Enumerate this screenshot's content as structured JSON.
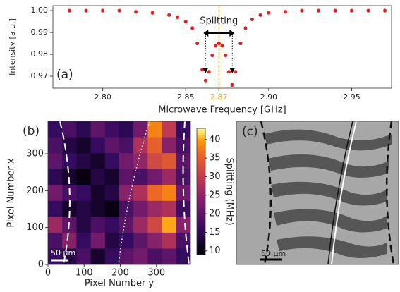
{
  "chart_data": [
    {
      "type": "scatter",
      "panel_label": "(a)",
      "annotation": "Splitting",
      "xlabel": "Microwave Frequency [GHz]",
      "ylabel": "Intensity [a.u.]",
      "color": "#e02424",
      "marker_line": {
        "x": 2.87,
        "color": "#f0a020"
      },
      "x": [
        2.78,
        2.79,
        2.8,
        2.81,
        2.82,
        2.83,
        2.84,
        2.845,
        2.85,
        2.854,
        2.857,
        2.86,
        2.862,
        2.864,
        2.866,
        2.868,
        2.87,
        2.872,
        2.874,
        2.876,
        2.878,
        2.88,
        2.883,
        2.886,
        2.89,
        2.895,
        2.9,
        2.91,
        2.92,
        2.93,
        2.94,
        2.95,
        2.96,
        2.97
      ],
      "values": [
        1.0,
        1.0,
        1.0,
        1.0,
        0.9995,
        0.999,
        0.998,
        0.997,
        0.995,
        0.992,
        0.985,
        0.973,
        0.968,
        0.972,
        0.9795,
        0.984,
        0.985,
        0.984,
        0.9795,
        0.972,
        0.966,
        0.972,
        0.985,
        0.992,
        0.996,
        0.998,
        0.999,
        0.9995,
        1.0,
        1.0,
        1.0,
        1.0,
        1.0,
        1.0
      ],
      "xlim": [
        2.77,
        2.974
      ],
      "ylim": [
        0.9645,
        1.0023
      ],
      "xticks": [
        {
          "value": 2.8,
          "label": "2.80"
        },
        2.85,
        2.87,
        {
          "value": 2.9,
          "label": "2.90"
        },
        2.95
      ],
      "yticks": [
        0.97,
        0.98,
        0.99,
        {
          "value": 1,
          "label": "1.00"
        }
      ]
    },
    {
      "type": "heatmap",
      "panel_label": "(b)",
      "scale_bar": "50 μm",
      "xlabel": "Pixel Number y",
      "ylabel": "Pixel Number x",
      "colorbar_label": "Splitting (MHz)",
      "colormap": "inferno",
      "xlim": [
        0,
        394
      ],
      "ylim": [
        0,
        388
      ],
      "clim": [
        9,
        43
      ],
      "xticks": [
        0,
        100,
        200,
        300
      ],
      "yticks": [
        0,
        100,
        200,
        300
      ],
      "cticks": [
        10,
        15,
        20,
        25,
        30,
        35,
        40
      ],
      "z": [
        [
          16,
          18,
          15,
          20,
          17,
          15,
          22,
          38,
          30,
          16
        ],
        [
          18,
          14,
          12,
          16,
          20,
          18,
          28,
          35,
          24,
          18
        ],
        [
          20,
          16,
          14,
          12,
          16,
          22,
          25,
          32,
          34,
          20
        ],
        [
          15,
          12,
          10,
          14,
          12,
          20,
          18,
          22,
          26,
          18
        ],
        [
          22,
          18,
          16,
          12,
          14,
          24,
          28,
          36,
          38,
          22
        ],
        [
          16,
          12,
          14,
          12,
          10,
          18,
          22,
          26,
          28,
          17
        ],
        [
          26,
          20,
          14,
          18,
          16,
          20,
          26,
          32,
          40,
          24
        ],
        [
          18,
          24,
          16,
          22,
          14,
          16,
          20,
          24,
          28,
          18
        ],
        [
          16,
          14,
          18,
          12,
          16,
          20,
          22,
          18,
          20,
          16
        ]
      ]
    }
  ],
  "panel_c": {
    "label": "(c)",
    "scale_bar": "50 μm"
  }
}
